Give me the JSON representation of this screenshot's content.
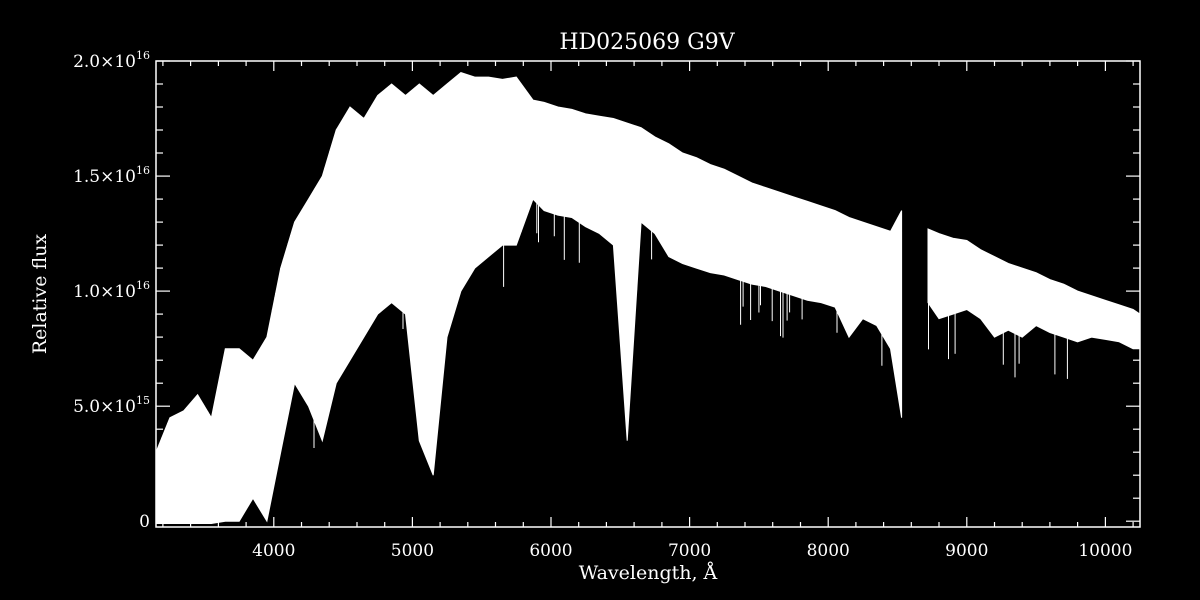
{
  "chart_data": {
    "type": "line",
    "title": "HD025069   G9V",
    "xlabel": "Wavelength, Å",
    "ylabel": "Relative flux",
    "xlim": [
      3150,
      10250
    ],
    "ylim": [
      -250000000000000.0,
      2e+16
    ],
    "x_ticks": [
      4000,
      5000,
      6000,
      7000,
      8000,
      9000,
      10000
    ],
    "x_tick_labels": [
      "4000",
      "5000",
      "6000",
      "7000",
      "8000",
      "9000",
      "10000"
    ],
    "y_ticks": [
      0,
      5000000000000000.0,
      1e+16,
      1.5e+16,
      2e+16
    ],
    "y_tick_labels": [
      {
        "mantissa": "0",
        "exp": ""
      },
      {
        "mantissa": "5.0×10",
        "exp": "15"
      },
      {
        "mantissa": "1.0×10",
        "exp": "16"
      },
      {
        "mantissa": "1.5×10",
        "exp": "16"
      },
      {
        "mantissa": "2.0×10",
        "exp": "16"
      }
    ],
    "grid": false,
    "series_color": "#ffffff",
    "background": "#000000",
    "series": [
      {
        "x": [
          3150,
          3250,
          3350,
          3450,
          3550,
          3650,
          3750,
          3850,
          3950,
          4050,
          4150,
          4250,
          4350,
          4450,
          4550,
          4650,
          4750,
          4850,
          4950,
          5050,
          5150,
          5250,
          5350,
          5450,
          5550,
          5650,
          5750,
          5870,
          5950,
          6050,
          6150,
          6250,
          6350,
          6450,
          6550,
          6650,
          6750,
          6850,
          6950,
          7050,
          7150,
          7250,
          7350,
          7450,
          7550,
          7650,
          7750,
          7850,
          7950,
          8050,
          8150,
          8250,
          8350,
          8450,
          8530,
          8720,
          8800,
          8900,
          9000,
          9100,
          9200,
          9300,
          9400,
          9500,
          9600,
          9700,
          9800,
          9900,
          10000,
          10100,
          10200,
          10250
        ],
        "y": [
          3000000000000000.0,
          4500000000000000.0,
          4800000000000000.0,
          5500000000000000.0,
          4500000000000000.0,
          7500000000000000.0,
          7500000000000000.0,
          7000000000000000.0,
          8000000000000000.0,
          1.1e+16,
          1.3e+16,
          1.4e+16,
          1.5e+16,
          1.7e+16,
          1.8e+16,
          1.75e+16,
          1.85e+16,
          1.9e+16,
          1.85e+16,
          1.9e+16,
          1.85e+16,
          1.9e+16,
          1.95e+16,
          1.93e+16,
          1.93e+16,
          1.92e+16,
          1.93e+16,
          1.83e+16,
          1.82e+16,
          1.8e+16,
          1.79e+16,
          1.77e+16,
          1.76e+16,
          1.75e+16,
          1.73e+16,
          1.71e+16,
          1.67e+16,
          1.64e+16,
          1.6e+16,
          1.58e+16,
          1.55e+16,
          1.53e+16,
          1.5e+16,
          1.47e+16,
          1.45e+16,
          1.43e+16,
          1.41e+16,
          1.39e+16,
          1.37e+16,
          1.35e+16,
          1.32e+16,
          1.3e+16,
          1.28e+16,
          1.26e+16,
          1.35e+16,
          1.27e+16,
          1.25e+16,
          1.23e+16,
          1.22e+16,
          1.18e+16,
          1.15e+16,
          1.12e+16,
          1.1e+16,
          1.08e+16,
          1.05e+16,
          1.03e+16,
          1e+16,
          9800000000000000.0,
          9600000000000000.0,
          9400000000000000.0,
          9200000000000000.0,
          9000000000000000.0
        ],
        "ymin": [
          -100000000000000.0,
          -100000000000000.0,
          -100000000000000.0,
          -100000000000000.0,
          -100000000000000.0,
          0,
          0,
          1000000000000000.0,
          0,
          3000000000000000.0,
          6000000000000000.0,
          5000000000000000.0,
          3500000000000000.0,
          6000000000000000.0,
          7000000000000000.0,
          8000000000000000.0,
          9000000000000000.0,
          9500000000000000.0,
          9000000000000000.0,
          3500000000000000.0,
          2000000000000000.0,
          8000000000000000.0,
          1e+16,
          1.1e+16,
          1.15e+16,
          1.2e+16,
          1.2e+16,
          1.4e+16,
          1.35e+16,
          1.33e+16,
          1.32e+16,
          1.28e+16,
          1.25e+16,
          1.2e+16,
          3500000000000000.0,
          1.3e+16,
          1.25e+16,
          1.15e+16,
          1.12e+16,
          1.1e+16,
          1.08e+16,
          1.07e+16,
          1.05e+16,
          1.03e+16,
          1.02e+16,
          1e+16,
          9800000000000000.0,
          9600000000000000.0,
          9500000000000000.0,
          9300000000000000.0,
          8000000000000000.0,
          8800000000000000.0,
          8500000000000000.0,
          7500000000000000.0,
          4500000000000000.0,
          9500000000000000.0,
          8800000000000000.0,
          9000000000000000.0,
          9200000000000000.0,
          8800000000000000.0,
          8000000000000000.0,
          8300000000000000.0,
          8000000000000000.0,
          8500000000000000.0,
          8200000000000000.0,
          8000000000000000.0,
          7800000000000000.0,
          8000000000000000.0,
          7900000000000000.0,
          7800000000000000.0,
          7500000000000000.0,
          7500000000000000.0
        ]
      }
    ]
  }
}
